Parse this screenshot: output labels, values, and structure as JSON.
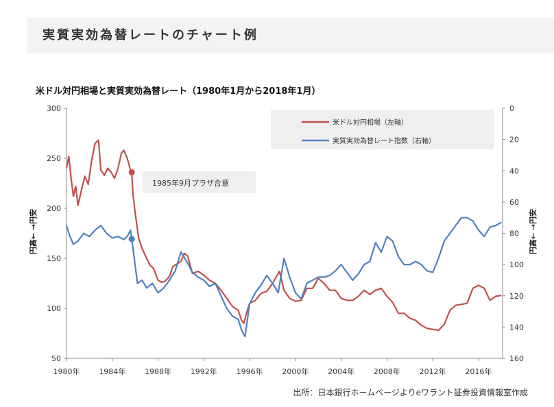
{
  "header": {
    "title": "実質実効為替レートのチャート例"
  },
  "source_note": "出所：日本銀行ホームページよりeワラント証券投資情報室作成",
  "chart_data": {
    "type": "line",
    "title": "米ドル対円相場と実質実効為替レート（1980年1月から2018年1月）",
    "xlabel": "",
    "x_ticks": [
      "1980年",
      "1984年",
      "1988年",
      "1992年",
      "1996年",
      "2000年",
      "2004年",
      "2008年",
      "2012年",
      "2016年"
    ],
    "xlim": [
      1980,
      2018.1
    ],
    "y_left": {
      "label": "円高← →円安",
      "lim": [
        50,
        300
      ],
      "ticks": [
        50,
        100,
        150,
        200,
        250,
        300
      ]
    },
    "y_right": {
      "label": "円高← →円安",
      "lim": [
        160,
        0
      ],
      "ticks": [
        0,
        20,
        40,
        60,
        80,
        100,
        120,
        140,
        160
      ],
      "reversed": true
    },
    "series": [
      {
        "name": "米ドル対円相場（左軸）",
        "axis": "left",
        "color": "#c0504d",
        "x": [
          1980.0,
          1980.2,
          1980.4,
          1980.6,
          1980.8,
          1981.0,
          1981.3,
          1981.6,
          1981.9,
          1982.2,
          1982.5,
          1982.8,
          1983.0,
          1983.3,
          1983.6,
          1983.9,
          1984.2,
          1984.5,
          1984.8,
          1985.0,
          1985.3,
          1985.6,
          1985.7,
          1985.8,
          1986.0,
          1986.3,
          1986.6,
          1987.0,
          1987.3,
          1987.6,
          1988.0,
          1988.3,
          1988.6,
          1989.0,
          1989.3,
          1989.6,
          1990.0,
          1990.3,
          1990.6,
          1991.0,
          1991.5,
          1992.0,
          1992.5,
          1993.0,
          1993.5,
          1994.0,
          1994.5,
          1995.0,
          1995.3,
          1995.5,
          1995.8,
          1996.0,
          1996.5,
          1997.0,
          1997.5,
          1998.0,
          1998.6,
          1999.0,
          1999.5,
          2000.0,
          2000.5,
          2001.0,
          2001.5,
          2002.0,
          2002.5,
          2003.0,
          2003.5,
          2004.0,
          2004.5,
          2005.0,
          2005.5,
          2006.0,
          2006.5,
          2007.0,
          2007.5,
          2008.0,
          2008.5,
          2009.0,
          2009.5,
          2010.0,
          2010.5,
          2011.0,
          2011.5,
          2012.0,
          2012.5,
          2013.0,
          2013.5,
          2014.0,
          2014.5,
          2015.0,
          2015.5,
          2016.0,
          2016.5,
          2017.0,
          2017.5,
          2018.0
        ],
        "values": [
          240,
          252,
          230,
          212,
          222,
          203,
          218,
          232,
          224,
          248,
          265,
          268,
          238,
          233,
          240,
          236,
          230,
          240,
          255,
          258,
          250,
          238,
          236,
          215,
          195,
          170,
          160,
          150,
          143,
          140,
          128,
          126,
          127,
          132,
          142,
          144,
          147,
          155,
          152,
          135,
          137,
          133,
          128,
          125,
          118,
          110,
          102,
          98,
          88,
          85,
          98,
          105,
          108,
          115,
          117,
          125,
          137,
          118,
          110,
          107,
          108,
          120,
          120,
          130,
          125,
          118,
          118,
          110,
          108,
          108,
          112,
          118,
          114,
          118,
          120,
          112,
          106,
          95,
          95,
          90,
          88,
          83,
          80,
          79,
          78,
          84,
          98,
          103,
          104,
          105,
          120,
          123,
          120,
          108,
          112,
          113
        ]
      },
      {
        "name": "実質実効為替レート指数（右軸）",
        "axis": "right",
        "color": "#4f81bd",
        "x": [
          1980.0,
          1980.3,
          1980.6,
          1981.0,
          1981.5,
          1982.0,
          1982.5,
          1983.0,
          1983.5,
          1984.0,
          1984.5,
          1985.0,
          1985.3,
          1985.6,
          1985.9,
          1986.2,
          1986.6,
          1987.0,
          1987.5,
          1988.0,
          1988.5,
          1989.0,
          1989.5,
          1990.0,
          1990.5,
          1991.0,
          1991.5,
          1992.0,
          1992.5,
          1993.0,
          1993.5,
          1994.0,
          1994.5,
          1995.0,
          1995.3,
          1995.6,
          1996.0,
          1996.5,
          1997.0,
          1997.5,
          1998.0,
          1998.5,
          1999.0,
          1999.5,
          2000.0,
          2000.5,
          2001.0,
          2001.5,
          2002.0,
          2002.5,
          2003.0,
          2003.5,
          2004.0,
          2004.5,
          2005.0,
          2005.5,
          2006.0,
          2006.5,
          2007.0,
          2007.5,
          2008.0,
          2008.5,
          2009.0,
          2009.5,
          2010.0,
          2010.5,
          2011.0,
          2011.5,
          2012.0,
          2012.5,
          2013.0,
          2013.5,
          2014.0,
          2014.5,
          2015.0,
          2015.5,
          2016.0,
          2016.5,
          2017.0,
          2017.5,
          2018.0
        ],
        "values": [
          75,
          82,
          87,
          85,
          80,
          82,
          78,
          75,
          80,
          83,
          82,
          84,
          82,
          78,
          95,
          112,
          110,
          115,
          112,
          118,
          115,
          110,
          104,
          92,
          98,
          105,
          108,
          110,
          114,
          112,
          120,
          128,
          133,
          135,
          142,
          146,
          125,
          118,
          113,
          107,
          112,
          118,
          96,
          108,
          118,
          122,
          112,
          110,
          108,
          108,
          107,
          104,
          100,
          105,
          110,
          106,
          100,
          98,
          86,
          92,
          82,
          85,
          95,
          100,
          100,
          98,
          100,
          104,
          105,
          96,
          85,
          80,
          75,
          70,
          70,
          72,
          78,
          82,
          76,
          75,
          73
        ]
      }
    ],
    "legend": {
      "position": "top-right"
    },
    "annotation": {
      "text": "1985年9月プラザ合意",
      "x": 1985.7
    }
  }
}
